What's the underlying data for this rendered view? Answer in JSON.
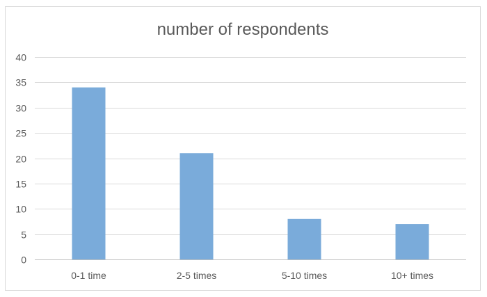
{
  "chart_data": {
    "type": "bar",
    "title": "number of respondents",
    "categories": [
      "0-1 time",
      "2-5 times",
      "5-10 times",
      "10+ times"
    ],
    "values": [
      34,
      21,
      8,
      7
    ],
    "ylim": [
      0,
      40
    ],
    "yticks": [
      "0",
      "5",
      "10",
      "15",
      "20",
      "25",
      "30",
      "35",
      "40"
    ],
    "xlabel": "",
    "ylabel": "",
    "grid": true,
    "legend": "none",
    "bar_color": "#7aabda"
  }
}
